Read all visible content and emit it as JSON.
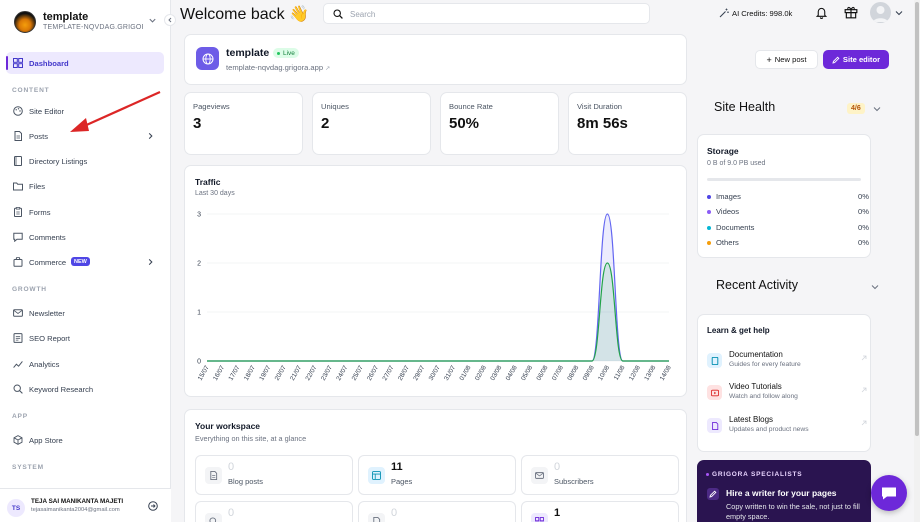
{
  "app": {
    "title": "Welcome back",
    "wave_emoji": "👋"
  },
  "site": {
    "name": "template",
    "domain_short": "TEMPLATE-NQVDAG.GRIGOR...",
    "domain": "template-nqvdag.grigora.app",
    "status": "Live"
  },
  "sidebar": {
    "dashboard": "Dashboard",
    "sections": {
      "content": "CONTENT",
      "growth": "GROWTH",
      "app": "APP",
      "system": "SYSTEM"
    },
    "content_items": [
      {
        "label": "Site Editor",
        "icon": "palette-icon"
      },
      {
        "label": "Posts",
        "icon": "document-icon",
        "has_arrow": true
      },
      {
        "label": "Directory Listings",
        "icon": "book-icon"
      },
      {
        "label": "Files",
        "icon": "folder-icon"
      },
      {
        "label": "Forms",
        "icon": "clipboard-icon"
      },
      {
        "label": "Comments",
        "icon": "chat-icon"
      },
      {
        "label": "Commerce",
        "icon": "cart-icon",
        "badge": "NEW",
        "has_arrow": true
      }
    ],
    "growth_items": [
      {
        "label": "Newsletter",
        "icon": "mail-icon"
      },
      {
        "label": "SEO Report",
        "icon": "report-icon"
      },
      {
        "label": "Analytics",
        "icon": "chart-icon"
      },
      {
        "label": "Keyword Research",
        "icon": "search-icon"
      }
    ],
    "app_items": [
      {
        "label": "App Store",
        "icon": "cube-icon"
      }
    ]
  },
  "user": {
    "initials": "TS",
    "name": "TEJA SAI MANIKANTA MAJETI",
    "email": "tejasaimanikanta2004@gmail.com"
  },
  "topbar": {
    "search_placeholder": "Search",
    "credits": "AI Credits: 998.0k"
  },
  "buttons": {
    "new_post": "New post",
    "site_editor": "Site editor"
  },
  "stats": [
    {
      "label": "Pageviews",
      "value": "3"
    },
    {
      "label": "Uniques",
      "value": "2"
    },
    {
      "label": "Bounce Rate",
      "value": "50%"
    },
    {
      "label": "Visit Duration",
      "value": "8m 56s"
    }
  ],
  "traffic": {
    "title": "Traffic",
    "subtitle": "Last 30 days"
  },
  "chart_data": {
    "type": "area",
    "x": [
      "15/07",
      "16/07",
      "17/07",
      "18/07",
      "19/07",
      "20/07",
      "21/07",
      "22/07",
      "23/07",
      "24/07",
      "25/07",
      "26/07",
      "27/07",
      "28/07",
      "29/07",
      "30/07",
      "31/07",
      "01/08",
      "02/08",
      "03/08",
      "04/08",
      "05/08",
      "06/08",
      "07/08",
      "08/08",
      "09/08",
      "10/08",
      "11/08",
      "12/08",
      "13/08",
      "14/08"
    ],
    "series": [
      {
        "values": [
          0,
          0,
          0,
          0,
          0,
          0,
          0,
          0,
          0,
          0,
          0,
          0,
          0,
          0,
          0,
          0,
          0,
          0,
          0,
          0,
          0,
          0,
          0,
          0,
          0,
          0,
          3,
          0,
          0,
          0,
          0
        ],
        "color": "#6366f1"
      },
      {
        "values": [
          0,
          0,
          0,
          0,
          0,
          0,
          0,
          0,
          0,
          0,
          0,
          0,
          0,
          0,
          0,
          0,
          0,
          0,
          0,
          0,
          0,
          0,
          0,
          0,
          0,
          0,
          2,
          0,
          0,
          0,
          0
        ],
        "color": "#22a34a"
      }
    ],
    "yticks": [
      0,
      1,
      2,
      3
    ],
    "ylim": [
      0,
      3
    ],
    "grid": true
  },
  "workspace": {
    "title": "Your workspace",
    "subtitle": "Everything on this site, at a glance",
    "tiles": [
      {
        "value": "0",
        "label": "Blog posts",
        "icon": "document-icon",
        "muted": true
      },
      {
        "value": "11",
        "label": "Pages",
        "icon": "layout-icon",
        "muted": false
      },
      {
        "value": "0",
        "label": "Subscribers",
        "icon": "mail-icon",
        "muted": true
      },
      {
        "value": "0",
        "label": "",
        "icon": "search-icon",
        "muted": true
      },
      {
        "value": "0",
        "label": "",
        "icon": "document-icon",
        "muted": true
      },
      {
        "value": "1",
        "label": "",
        "icon": "grid-icon",
        "muted": false
      }
    ]
  },
  "health": {
    "title": "Site Health",
    "score": "4/6"
  },
  "storage": {
    "title": "Storage",
    "used": "0 B of 9.0 PB used",
    "rows": [
      {
        "name": "Images",
        "pct": "0%",
        "color": "#4f46e5"
      },
      {
        "name": "Videos",
        "pct": "0%",
        "color": "#8b5cf6"
      },
      {
        "name": "Documents",
        "pct": "0%",
        "color": "#06b6d4"
      },
      {
        "name": "Others",
        "pct": "0%",
        "color": "#f59e0b"
      }
    ]
  },
  "activity": {
    "title": "Recent Activity"
  },
  "help": {
    "title": "Learn & get help",
    "items": [
      {
        "title": "Documentation",
        "sub": "Guides for every feature",
        "icon": "book-icon",
        "color": "#0891b2",
        "bg": "#e0f2fe"
      },
      {
        "title": "Video Tutorials",
        "sub": "Watch and follow along",
        "icon": "play-icon",
        "color": "#dc2626",
        "bg": "#fee2e2"
      },
      {
        "title": "Latest Blogs",
        "sub": "Updates and product news",
        "icon": "document-icon",
        "color": "#6d28d9",
        "bg": "#ede9fe"
      }
    ]
  },
  "specialists": {
    "tag": "GRIGORA SPECIALISTS",
    "title": "Hire a writer for your pages",
    "text": "Copy written to win the sale, not just to fill empty space."
  },
  "colors": {
    "accent": "#6d28d9",
    "accent_light": "#ede9fe"
  }
}
